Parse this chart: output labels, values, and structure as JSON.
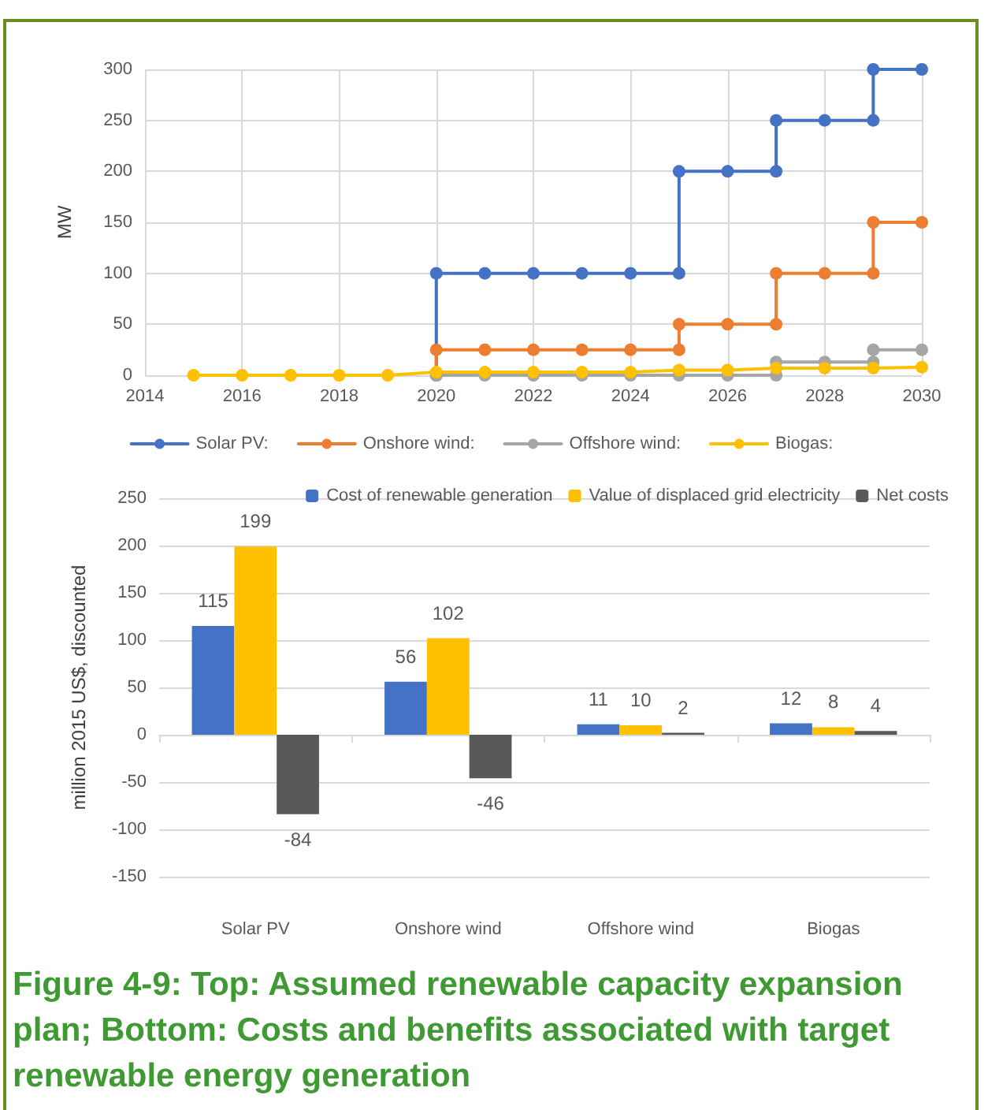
{
  "chart_data": [
    {
      "type": "line",
      "ylabel": "MW",
      "xlim": [
        2014,
        2030
      ],
      "xticks": [
        2014,
        2016,
        2018,
        2020,
        2022,
        2024,
        2026,
        2028,
        2030
      ],
      "ylim": [
        0,
        300
      ],
      "yticks": [
        0,
        50,
        100,
        150,
        200,
        250,
        300
      ],
      "grid": true,
      "legend": "bottom",
      "marker": "circle",
      "line_style": "solid",
      "series": [
        {
          "name": "Solar PV:",
          "color": "#4472c4",
          "x": [
            2020,
            2020,
            2021,
            2022,
            2023,
            2024,
            2025,
            2025,
            2026,
            2027,
            2027,
            2028,
            2029,
            2029,
            2030
          ],
          "values": [
            0,
            100,
            100,
            100,
            100,
            100,
            100,
            200,
            200,
            200,
            250,
            250,
            250,
            300,
            300
          ]
        },
        {
          "name": "Onshore wind:",
          "color": "#ed7d31",
          "x": [
            2020,
            2020,
            2021,
            2022,
            2023,
            2024,
            2025,
            2025,
            2026,
            2027,
            2027,
            2028,
            2029,
            2029,
            2030
          ],
          "values": [
            0,
            25,
            25,
            25,
            25,
            25,
            25,
            50,
            50,
            50,
            100,
            100,
            100,
            150,
            150
          ]
        },
        {
          "name": "Offshore wind:",
          "color": "#a5a5a5",
          "x": [
            2020,
            2021,
            2022,
            2023,
            2024,
            2025,
            2026,
            2027,
            2027,
            2028,
            2029,
            2029,
            2030
          ],
          "values": [
            0,
            0,
            0,
            0,
            0,
            0,
            0,
            0,
            13,
            13,
            13,
            25,
            25
          ]
        },
        {
          "name": "Biogas:",
          "color": "#ffc000",
          "x": [
            2015,
            2016,
            2017,
            2018,
            2019,
            2020,
            2021,
            2022,
            2023,
            2024,
            2025,
            2026,
            2027,
            2028,
            2029,
            2030
          ],
          "values": [
            0,
            0,
            0,
            0,
            0,
            3,
            3,
            3,
            3,
            3,
            5,
            5,
            7,
            7,
            7,
            8
          ]
        }
      ]
    },
    {
      "type": "bar",
      "ylabel": "million 2015 US$, discounted",
      "categories": [
        "Solar PV",
        "Onshore wind",
        "Offshore wind",
        "Biogas"
      ],
      "ylim": [
        -150,
        250
      ],
      "yticks": [
        -150,
        -100,
        -50,
        0,
        50,
        100,
        150,
        200,
        250
      ],
      "grid": "y",
      "legend": "top right",
      "data_labels": true,
      "series": [
        {
          "name": "Cost of renewable generation",
          "color": "#4472c4",
          "values": [
            115,
            56,
            11,
            12
          ]
        },
        {
          "name": "Value of displaced grid electricity",
          "color": "#ffc000",
          "values": [
            199,
            102,
            10,
            8
          ]
        },
        {
          "name": "Net costs",
          "color": "#595959",
          "values": [
            -84,
            -46,
            2,
            4
          ]
        }
      ],
      "annotations": [
        "Figure 4-9: Top: Assumed renewable capacity expansion plan; Bottom: Costs and benefits associated with target renewable energy generation"
      ]
    }
  ]
}
